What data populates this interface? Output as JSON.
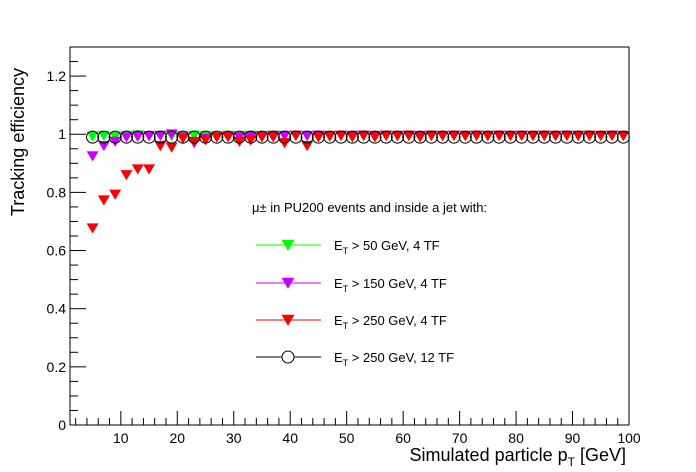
{
  "chart_data": {
    "type": "scatter",
    "title": "",
    "xlabel": "Simulated particle p",
    "xlabel_sub": "T",
    "xlabel_unit": " [GeV]",
    "ylabel": "Tracking efficiency",
    "xlim": [
      1,
      100
    ],
    "ylim": [
      0,
      1.3
    ],
    "x_major_ticks": [
      10,
      20,
      30,
      40,
      50,
      60,
      70,
      80,
      90,
      100
    ],
    "y_major_ticks": [
      0,
      0.2,
      0.4,
      0.6,
      0.8,
      1,
      1.2
    ],
    "x_tick_labels": [
      "10",
      "20",
      "30",
      "40",
      "50",
      "60",
      "70",
      "80",
      "90",
      "100"
    ],
    "y_tick_labels": [
      "0",
      "0.2",
      "0.4",
      "0.6",
      "0.8",
      "1",
      "1.2"
    ],
    "legend_header": "μ± in PU200 events and inside a jet with:",
    "legend_position": "center-right",
    "x": [
      5,
      7,
      9,
      11,
      13,
      15,
      17,
      19,
      21,
      23,
      25,
      27,
      29,
      31,
      33,
      35,
      37,
      39,
      41,
      43,
      45,
      47,
      49,
      51,
      53,
      55,
      57,
      59,
      61,
      63,
      65,
      67,
      69,
      71,
      73,
      75,
      77,
      79,
      81,
      83,
      85,
      87,
      89,
      91,
      93,
      95,
      97,
      99
    ],
    "series": [
      {
        "name": "E",
        "name_sub": "T",
        "name_rest": " > 50 GeV, 4 TF",
        "marker": "triangle-down",
        "color": "#00ff00",
        "values": [
          0.993,
          0.995,
          0.992,
          0.995,
          0.997,
          0.994,
          0.996,
          0.994,
          0.995,
          0.996,
          0.995,
          0.994,
          0.996,
          0.995,
          0.996,
          0.995,
          0.996,
          0.995,
          0.996,
          0.995,
          0.996,
          0.995,
          0.996,
          0.995,
          0.996,
          0.995,
          0.996,
          0.995,
          0.996,
          0.995,
          0.996,
          0.995,
          0.996,
          0.995,
          0.996,
          0.995,
          0.996,
          0.995,
          0.996,
          0.995,
          0.996,
          0.995,
          0.996,
          0.995,
          0.996,
          0.995,
          0.996,
          0.995
        ]
      },
      {
        "name": "E",
        "name_sub": "T",
        "name_rest": " > 150 GeV, 4 TF",
        "marker": "triangle-down",
        "color": "#cc00ff",
        "values": [
          0.925,
          0.96,
          0.975,
          0.99,
          0.992,
          0.994,
          0.995,
          1.0,
          0.99,
          0.97,
          0.985,
          0.99,
          0.992,
          0.99,
          0.993,
          0.994,
          0.995,
          0.995,
          0.996,
          0.995,
          0.996,
          0.995,
          0.996,
          0.995,
          0.996,
          0.995,
          0.996,
          0.995,
          0.996,
          0.995,
          0.996,
          0.995,
          0.996,
          0.995,
          0.996,
          0.995,
          0.996,
          0.995,
          0.996,
          0.995,
          0.996,
          0.995,
          0.996,
          0.995,
          0.996,
          0.995,
          0.996,
          0.995
        ]
      },
      {
        "name": "E",
        "name_sub": "T",
        "name_rest": " > 250 GeV, 4 TF",
        "marker": "triangle-down",
        "color": "#ff0000",
        "values": [
          0.677,
          0.773,
          0.793,
          0.86,
          0.88,
          0.88,
          0.96,
          0.955,
          0.985,
          0.975,
          0.98,
          0.99,
          0.99,
          0.975,
          0.98,
          0.99,
          0.99,
          0.97,
          0.995,
          0.96,
          0.99,
          0.993,
          0.995,
          0.99,
          0.995,
          0.99,
          0.995,
          0.995,
          0.995,
          0.99,
          0.995,
          0.995,
          0.995,
          0.995,
          0.995,
          0.995,
          0.995,
          0.995,
          0.995,
          0.995,
          0.995,
          0.995,
          0.995,
          0.995,
          0.995,
          0.995,
          0.995,
          0.995
        ]
      },
      {
        "name": "E",
        "name_sub": "T",
        "name_rest": " > 250 GeV, 12 TF",
        "marker": "circle-open",
        "color": "#000000",
        "values": [
          0.99,
          0.99,
          0.99,
          0.99,
          0.99,
          0.99,
          0.99,
          0.99,
          0.99,
          0.99,
          0.99,
          0.99,
          0.99,
          0.99,
          0.99,
          0.99,
          0.99,
          0.99,
          0.99,
          0.99,
          0.99,
          0.99,
          0.99,
          0.99,
          0.99,
          0.99,
          0.99,
          0.99,
          0.99,
          0.99,
          0.99,
          0.99,
          0.99,
          0.99,
          0.99,
          0.99,
          0.99,
          0.99,
          0.99,
          0.99,
          0.99,
          0.99,
          0.99,
          0.99,
          0.99,
          0.99,
          0.99,
          0.99
        ]
      }
    ]
  }
}
